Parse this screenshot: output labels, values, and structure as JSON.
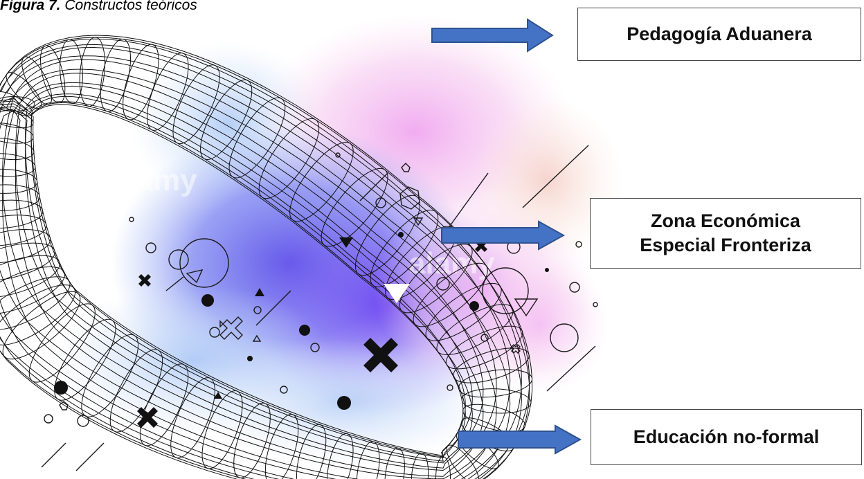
{
  "caption": {
    "label": "Figura 7.",
    "title": "Constructos teóricos"
  },
  "constructs": [
    {
      "lines": [
        "Pedagogía Aduanera"
      ]
    },
    {
      "lines": [
        "Zona Económica",
        "Especial Fronteriza"
      ]
    },
    {
      "lines": [
        "Educación no-formal"
      ]
    }
  ],
  "watermark": "alamy",
  "colors": {
    "arrow_fill": "#4472c4",
    "arrow_stroke": "#2f528f",
    "blob_blue": "#5a6cf0",
    "blob_violet": "#8a4fe8",
    "blob_pink": "#f3b6f0",
    "blob_peach": "#f6d2c8",
    "mesh": "#111111"
  },
  "illustration": {
    "description_icons": [
      "wireframe-torus",
      "gradient-blob",
      "cross-icon",
      "circle-icon",
      "triangle-icon",
      "hexagon-icon",
      "dot-icon",
      "stroke-line"
    ]
  }
}
